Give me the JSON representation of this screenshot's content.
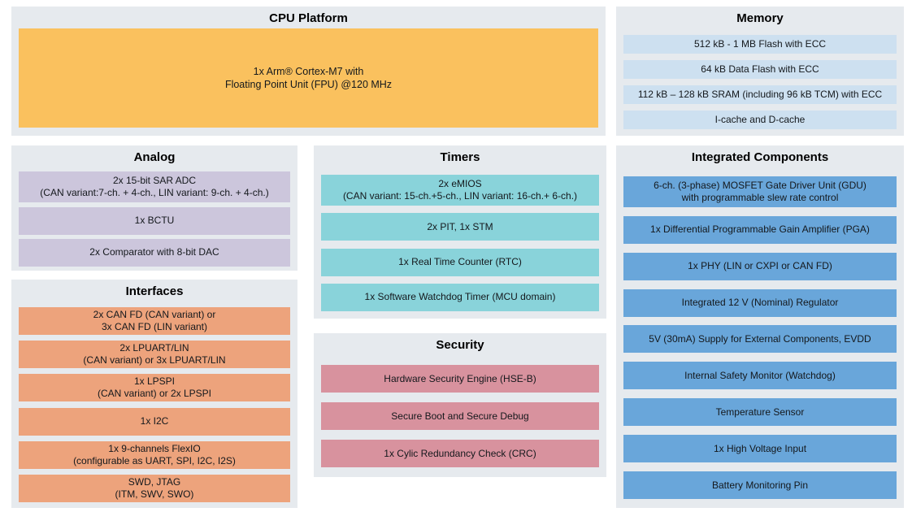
{
  "page": {
    "background": "#ffffff",
    "panel_background": "#e6eaee",
    "title_color": "#000000",
    "text_color": "#14181c"
  },
  "panels": {
    "cpu": {
      "title": "CPU Platform",
      "color": "#fac15e",
      "rows": [
        {
          "text": "1x Arm® Cortex-M7 with\nFloating Point Unit (FPU) @120 MHz"
        }
      ]
    },
    "memory": {
      "title": "Memory",
      "color": "#cde0f0",
      "rows": [
        {
          "text": "512 kB - 1 MB Flash with ECC"
        },
        {
          "text": "64 kB Data Flash with ECC"
        },
        {
          "text": "112 kB – 128 kB SRAM (including 96 kB TCM) with ECC"
        },
        {
          "text": "I-cache and D-cache"
        }
      ]
    },
    "analog": {
      "title": "Analog",
      "color": "#ccc6dc",
      "rows": [
        {
          "text": "2x 15-bit SAR ADC\n(CAN variant:7-ch. + 4-ch., LIN variant: 9-ch. + 4-ch.)"
        },
        {
          "text": "1x BCTU"
        },
        {
          "text": "2x Comparator with 8-bit DAC"
        }
      ]
    },
    "interfaces": {
      "title": "Interfaces",
      "color": "#eda37c",
      "rows": [
        {
          "text": "2x CAN FD (CAN variant) or\n3x CAN FD (LIN variant)"
        },
        {
          "text": "2x LPUART/LIN\n(CAN variant) or 3x LPUART/LIN"
        },
        {
          "text": "1x LPSPI\n(CAN variant) or 2x LPSPI"
        },
        {
          "text": "1x I2C"
        },
        {
          "text": "1x 9-channels FlexIO\n(configurable as UART, SPI, I2C, I2S)"
        },
        {
          "text": "SWD, JTAG\n(ITM, SWV, SWO)"
        }
      ]
    },
    "timers": {
      "title": "Timers",
      "color": "#89d3da",
      "rows": [
        {
          "text": "2x eMIOS\n(CAN variant: 15-ch.+5-ch., LIN variant: 16-ch.+ 6-ch.)"
        },
        {
          "text": "2x PIT, 1x STM"
        },
        {
          "text": "1x Real Time Counter (RTC)"
        },
        {
          "text": "1x Software Watchdog Timer (MCU domain)"
        }
      ]
    },
    "security": {
      "title": "Security",
      "color": "#d8929e",
      "rows": [
        {
          "text": "Hardware Security Engine (HSE-B)"
        },
        {
          "text": "Secure Boot and Secure Debug"
        },
        {
          "text": "1x Cylic Redundancy Check (CRC)"
        }
      ]
    },
    "integrated": {
      "title": "Integrated Components",
      "color": "#69a6da",
      "rows": [
        {
          "text": "6-ch. (3-phase) MOSFET Gate Driver Unit (GDU)\nwith programmable slew rate control"
        },
        {
          "text": "1x Differential Programmable Gain Amplifier (PGA)"
        },
        {
          "text": "1x PHY (LIN or CXPI or CAN FD)"
        },
        {
          "text": "Integrated 12 V (Nominal) Regulator"
        },
        {
          "text": "5V (30mA) Supply for External Components, EVDD"
        },
        {
          "text": "Internal Safety Monitor (Watchdog)"
        },
        {
          "text": "Temperature Sensor"
        },
        {
          "text": "1x High Voltage Input"
        },
        {
          "text": "Battery Monitoring Pin"
        }
      ]
    }
  }
}
